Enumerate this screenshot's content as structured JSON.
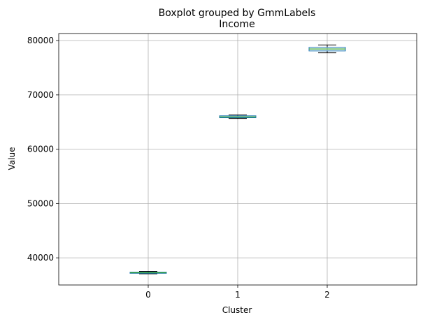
{
  "chart_data": {
    "type": "boxplot",
    "suptitle": "Boxplot grouped by GmmLabels",
    "title": "Income",
    "xlabel": "Cluster",
    "ylabel": "Value",
    "categories": [
      "0",
      "1",
      "2"
    ],
    "ylim": [
      35000,
      81300
    ],
    "yticks": [
      40000,
      50000,
      60000,
      70000,
      80000
    ],
    "grid": true,
    "boxes": [
      {
        "category": "0",
        "whisker_low": 37050,
        "q1": 37150,
        "median": 37250,
        "q3": 37350,
        "whisker_high": 37500
      },
      {
        "category": "1",
        "whisker_low": 65650,
        "q1": 65800,
        "median": 65950,
        "q3": 66150,
        "whisker_high": 66300
      },
      {
        "category": "2",
        "whisker_low": 77750,
        "q1": 78100,
        "median": 78450,
        "q3": 78750,
        "whisker_high": 79200
      }
    ],
    "colors": {
      "box": "#1f77b4",
      "median": "#2ca02c",
      "whisker": "#000000",
      "grid": "#b0b0b0",
      "frame": "#000000"
    }
  }
}
